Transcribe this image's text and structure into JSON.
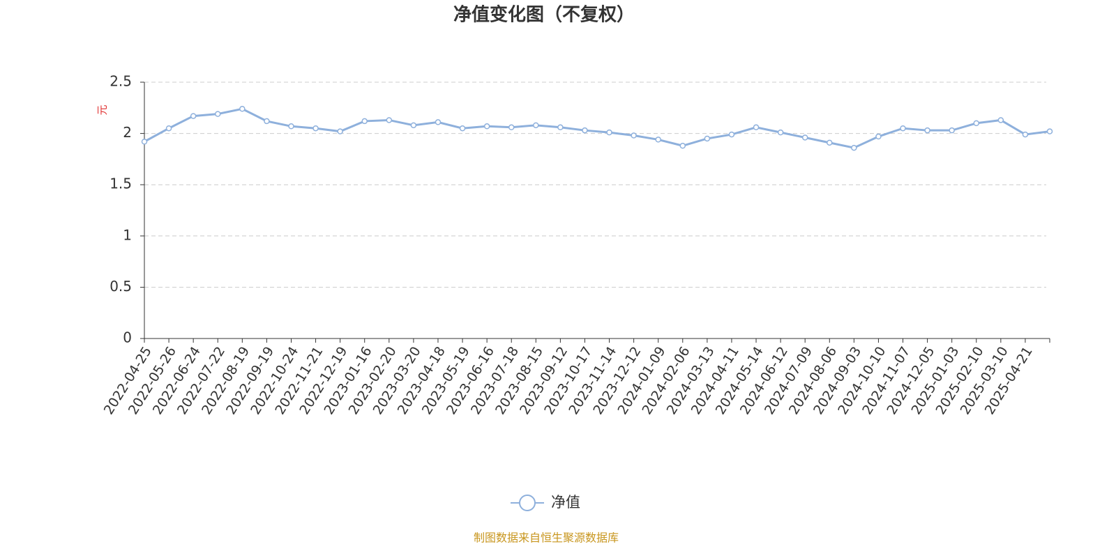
{
  "chart_data": {
    "type": "line",
    "title": "净值变化图（不复权）",
    "y_label": "元",
    "footer": "制图数据来自恒生聚源数据库",
    "categories": [
      "2022-04-25",
      "2022-05-26",
      "2022-06-24",
      "2022-07-22",
      "2022-08-19",
      "2022-09-19",
      "2022-10-24",
      "2022-11-21",
      "2022-12-19",
      "2023-01-16",
      "2023-02-20",
      "2023-03-20",
      "2023-04-18",
      "2023-05-19",
      "2023-06-16",
      "2023-07-18",
      "2023-08-15",
      "2023-09-12",
      "2023-10-17",
      "2023-11-14",
      "2023-12-12",
      "2024-01-09",
      "2024-02-06",
      "2024-03-13",
      "2024-04-11",
      "2024-05-14",
      "2024-06-12",
      "2024-07-09",
      "2024-08-06",
      "2024-09-03",
      "2024-10-10",
      "2024-11-07",
      "2024-12-05",
      "2025-01-03",
      "2025-02-10",
      "2025-03-10",
      "2025-04-21",
      null
    ],
    "series": [
      {
        "name": "净值",
        "color": "#8eb0dc",
        "values": [
          1.92,
          2.05,
          2.17,
          2.19,
          2.24,
          2.12,
          2.07,
          2.05,
          2.02,
          2.12,
          2.13,
          2.08,
          2.11,
          2.05,
          2.07,
          2.06,
          2.08,
          2.06,
          2.03,
          2.01,
          1.98,
          1.94,
          1.88,
          1.95,
          1.99,
          2.06,
          2.01,
          1.96,
          1.91,
          1.86,
          1.97,
          2.05,
          2.03,
          2.03,
          2.1,
          2.13,
          1.99,
          2.02
        ]
      }
    ],
    "ylim": [
      0,
      2.5
    ],
    "yticks": [
      0,
      0.5,
      1,
      1.5,
      2,
      2.5
    ],
    "grid": true
  }
}
